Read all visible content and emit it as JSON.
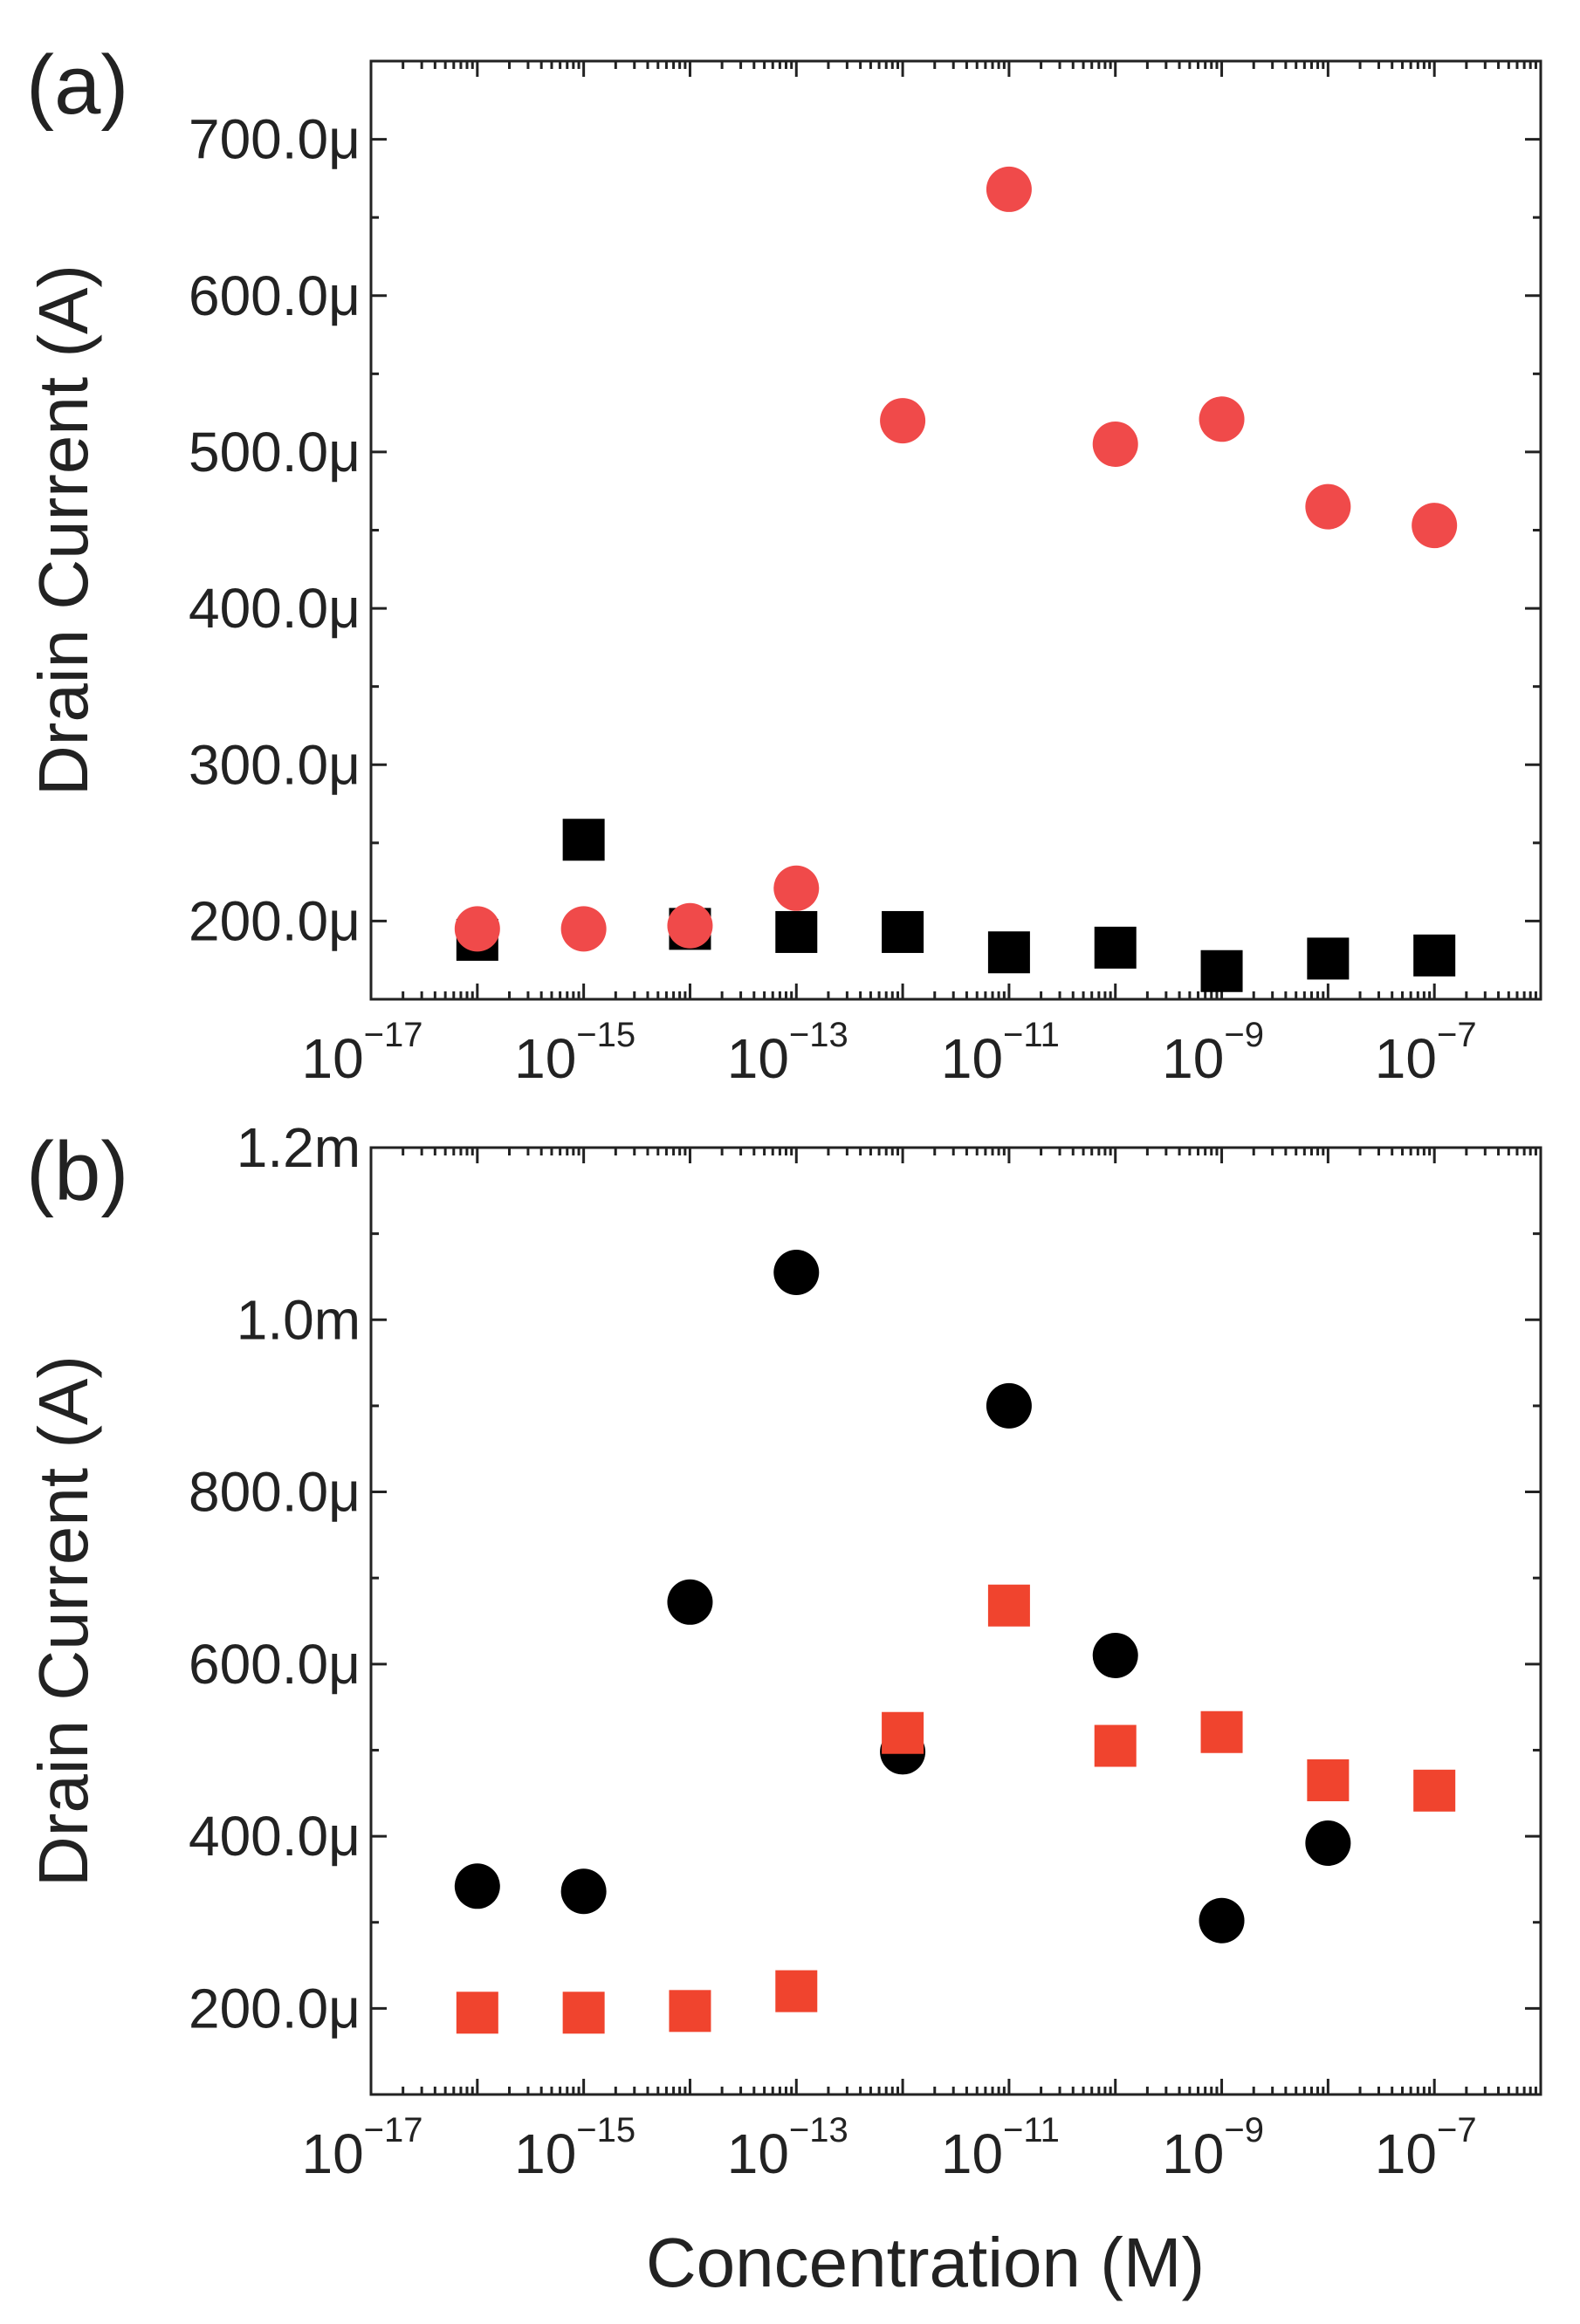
{
  "figure": {
    "xlabel": "Concentration (M)",
    "tick_base": "10",
    "colors": {
      "red": "#f04a4a",
      "red_square": "#f0442e",
      "black": "#000000",
      "axis": "#222222"
    }
  },
  "chart_data": [
    {
      "type": "scatter",
      "panel_label": "(a)",
      "xscale": "log",
      "xlim": [
        1e-17,
        1e-06
      ],
      "x_ticks": [
        {
          "base": "10",
          "exp": "−17"
        },
        {
          "base": "10",
          "exp": "−15"
        },
        {
          "base": "10",
          "exp": "−13"
        },
        {
          "base": "10",
          "exp": "−11"
        },
        {
          "base": "10",
          "exp": "−9"
        },
        {
          "base": "10",
          "exp": "−7"
        }
      ],
      "ylabel": "Drain Current (A)",
      "ylim": [
        150,
        750
      ],
      "y_ticks": [
        {
          "value": 200,
          "label": "200.0μ"
        },
        {
          "value": 300,
          "label": "300.0μ"
        },
        {
          "value": 400,
          "label": "400.0μ"
        },
        {
          "value": 500,
          "label": "500.0μ"
        },
        {
          "value": 600,
          "label": "600.0μ"
        },
        {
          "value": 700,
          "label": "700.0μ"
        }
      ],
      "y_units": "μA",
      "series": [
        {
          "name": "black squares",
          "marker": "square",
          "color": "#000000",
          "x": [
            1e-16,
            1e-15,
            1e-14,
            1e-13,
            1e-12,
            1e-11,
            1e-10,
            1e-09,
            1e-08,
            1e-07
          ],
          "y": [
            188,
            252,
            195,
            193,
            193,
            180,
            183,
            168,
            176,
            178
          ]
        },
        {
          "name": "red circles",
          "marker": "circle",
          "color": "#f04a4a",
          "x": [
            1e-16,
            1e-15,
            1e-14,
            1e-13,
            1e-12,
            1e-11,
            1e-10,
            1e-09,
            1e-08,
            1e-07
          ],
          "y": [
            195,
            195,
            197,
            221,
            520,
            668,
            505,
            521,
            465,
            453
          ]
        }
      ]
    },
    {
      "type": "scatter",
      "panel_label": "(b)",
      "xscale": "log",
      "xlim": [
        1e-17,
        1e-06
      ],
      "x_ticks": [
        {
          "base": "10",
          "exp": "−17"
        },
        {
          "base": "10",
          "exp": "−15"
        },
        {
          "base": "10",
          "exp": "−13"
        },
        {
          "base": "10",
          "exp": "−11"
        },
        {
          "base": "10",
          "exp": "−9"
        },
        {
          "base": "10",
          "exp": "−7"
        }
      ],
      "ylabel": "Drain Current (A)",
      "ylim": [
        100,
        1200
      ],
      "y_ticks": [
        {
          "value": 200,
          "label": "200.0μ"
        },
        {
          "value": 400,
          "label": "400.0μ"
        },
        {
          "value": 600,
          "label": "600.0μ"
        },
        {
          "value": 800,
          "label": "800.0μ"
        },
        {
          "value": 1000,
          "label": "1.0m"
        },
        {
          "value": 1200,
          "label": "1.2m"
        }
      ],
      "y_units": "μA",
      "series": [
        {
          "name": "black circles",
          "marker": "circle",
          "color": "#000000",
          "x": [
            1e-16,
            1e-15,
            1e-14,
            1e-13,
            1e-12,
            1e-11,
            1e-10,
            1e-09,
            1e-08
          ],
          "y": [
            342,
            336,
            672,
            1055,
            498,
            900,
            610,
            302,
            392
          ]
        },
        {
          "name": "red squares",
          "marker": "square",
          "color": "#f0442e",
          "x": [
            1e-16,
            1e-15,
            1e-14,
            1e-13,
            1e-12,
            1e-11,
            1e-10,
            1e-09,
            1e-08,
            1e-07
          ],
          "y": [
            195,
            195,
            197,
            220,
            520,
            668,
            505,
            521,
            465,
            453
          ]
        }
      ]
    }
  ]
}
